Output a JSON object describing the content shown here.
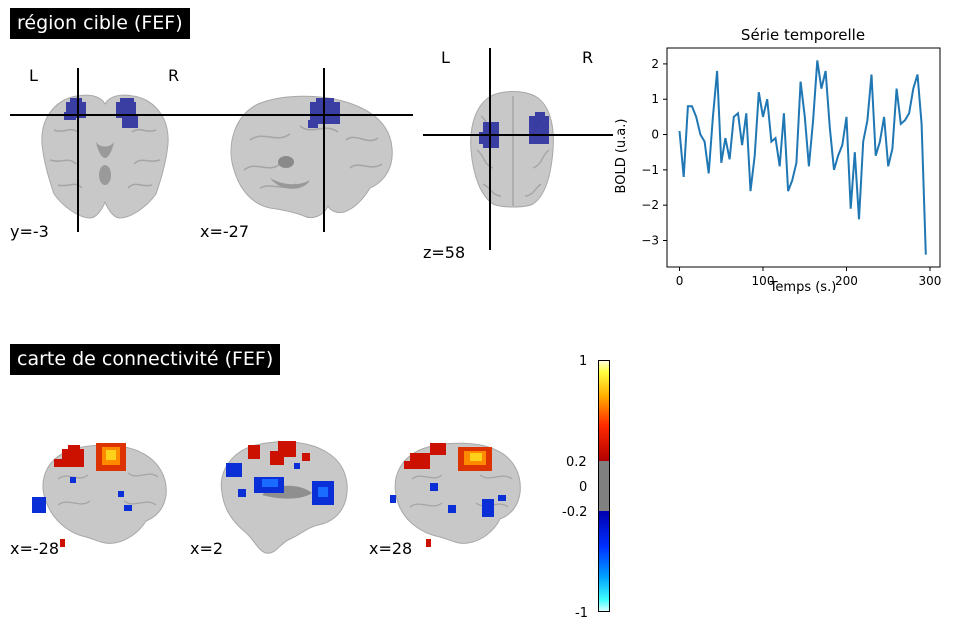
{
  "roi": {
    "title": "région cible (FEF)",
    "coronal_coord": "y=-3",
    "sagittal_coord": "x=-27",
    "axial_coord": "z=58",
    "left_label": "L",
    "right_label": "R"
  },
  "connectivity": {
    "title": "carte de connectivité (FEF)",
    "slice_labels": [
      "x=-28",
      "x=2",
      "x=28"
    ],
    "colorbar_ticks": [
      "1",
      "0.2",
      "0",
      "-0.2",
      "-1"
    ]
  },
  "timeseries": {
    "title": "Série temporelle",
    "xlabel": "Temps (s.)",
    "ylabel": "BOLD (u.a.)",
    "x_ticks": [
      "0",
      "100",
      "200",
      "300"
    ],
    "y_ticks": [
      "2",
      "1",
      "0",
      "−1",
      "−2",
      "−3"
    ]
  },
  "colors": {
    "roi_blue": "#2b2f9e",
    "line_blue": "#1f77b4",
    "brain_gray": "#c8c8c8",
    "hot_red": "#cc1100",
    "hot_yellow": "#ffd21a",
    "cold_blue": "#0a2fd6"
  },
  "chart_data": {
    "type": "line",
    "title": "Série temporelle",
    "xlabel": "Temps (s.)",
    "ylabel": "BOLD (u.a.)",
    "xlim": [
      -15,
      312
    ],
    "ylim": [
      -3.75,
      2.45
    ],
    "x": [
      0,
      5,
      10,
      15,
      20,
      25,
      30,
      35,
      40,
      45,
      50,
      55,
      60,
      65,
      70,
      75,
      80,
      85,
      90,
      95,
      100,
      105,
      110,
      115,
      120,
      125,
      130,
      135,
      140,
      145,
      150,
      155,
      160,
      165,
      170,
      175,
      180,
      185,
      190,
      195,
      200,
      205,
      210,
      215,
      220,
      225,
      230,
      235,
      240,
      245,
      250,
      255,
      260,
      265,
      270,
      275,
      280,
      285,
      290,
      295
    ],
    "series": [
      {
        "values": [
          0.1,
          -1.2,
          0.8,
          0.8,
          0.5,
          0.0,
          -0.2,
          -1.1,
          0.5,
          1.8,
          -0.8,
          -0.1,
          -0.7,
          0.5,
          0.6,
          -0.3,
          0.6,
          -1.6,
          -0.6,
          1.2,
          0.5,
          1.0,
          -0.2,
          -0.1,
          -0.9,
          0.6,
          -1.6,
          -1.3,
          -0.8,
          1.5,
          0.5,
          -0.9,
          0.4,
          2.1,
          1.3,
          1.8,
          0.2,
          -1.0,
          -0.6,
          -0.3,
          0.5,
          -2.1,
          -0.5,
          -2.4,
          -0.2,
          0.4,
          1.7,
          -0.6,
          -0.2,
          0.5,
          -0.9,
          -0.4,
          1.3,
          0.3,
          0.4,
          0.6,
          1.3,
          1.7,
          0.3,
          -3.4
        ]
      }
    ]
  }
}
